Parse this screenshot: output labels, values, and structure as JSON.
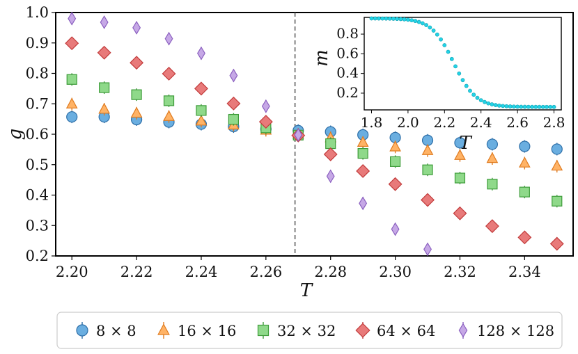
{
  "chart_data": [
    {
      "type": "scatter",
      "title": "",
      "xlabel": "T",
      "ylabel": "g",
      "xlim": [
        2.195,
        2.355
      ],
      "ylim": [
        0.2,
        1.0
      ],
      "xticks": [
        "2.20",
        "2.22",
        "2.24",
        "2.26",
        "2.28",
        "2.30",
        "2.32",
        "2.34"
      ],
      "yticks": [
        "0.2",
        "0.3",
        "0.4",
        "0.5",
        "0.6",
        "0.7",
        "0.8",
        "0.9",
        "1.0"
      ],
      "critical_line_x": 2.269,
      "legend_position": "bottom",
      "x": [
        2.2,
        2.21,
        2.22,
        2.23,
        2.24,
        2.25,
        2.26,
        2.27,
        2.28,
        2.29,
        2.3,
        2.31,
        2.32,
        2.33,
        2.34,
        2.35
      ],
      "series": [
        {
          "name": "8 × 8",
          "marker": "circle",
          "color": "#6aaee0",
          "edge": "#2e6fa8",
          "values": [
            0.657,
            0.657,
            0.648,
            0.64,
            0.633,
            0.625,
            0.617,
            0.612,
            0.608,
            0.598,
            0.589,
            0.58,
            0.572,
            0.567,
            0.56,
            0.551
          ]
        },
        {
          "name": "16 × 16",
          "marker": "triangle",
          "color": "#ffb366",
          "edge": "#e07b1f",
          "values": [
            0.699,
            0.682,
            0.669,
            0.658,
            0.643,
            0.63,
            0.613,
            0.6,
            0.588,
            0.573,
            0.558,
            0.546,
            0.53,
            0.52,
            0.505,
            0.495
          ]
        },
        {
          "name": "32 × 32",
          "marker": "square",
          "color": "#8fd98a",
          "edge": "#3e9c3a",
          "values": [
            0.78,
            0.753,
            0.73,
            0.71,
            0.678,
            0.649,
            0.621,
            0.597,
            0.569,
            0.537,
            0.51,
            0.483,
            0.456,
            0.436,
            0.41,
            0.38
          ]
        },
        {
          "name": "64 × 64",
          "marker": "diamond",
          "color": "#e87a7a",
          "edge": "#c23b3b",
          "values": [
            0.899,
            0.868,
            0.835,
            0.799,
            0.75,
            0.701,
            0.641,
            0.596,
            0.534,
            0.479,
            0.436,
            0.384,
            0.34,
            0.298,
            0.261,
            0.24
          ]
        },
        {
          "name": "128 × 128",
          "marker": "thin-diamond",
          "color": "#c6a8e6",
          "edge": "#8a5fbf",
          "values": [
            0.98,
            0.968,
            0.95,
            0.914,
            0.866,
            0.793,
            0.692,
            0.598,
            0.462,
            0.373,
            0.288,
            0.222,
            null,
            null,
            null,
            null
          ]
        }
      ]
    },
    {
      "type": "scatter",
      "title": "",
      "xlabel": "T",
      "ylabel": "m",
      "xlim": [
        1.76,
        2.84
      ],
      "ylim": [
        0.03,
        0.97
      ],
      "xticks": [
        "1.8",
        "2.0",
        "2.2",
        "2.4",
        "2.6",
        "2.8"
      ],
      "yticks": [
        "0.2",
        "0.4",
        "0.6",
        "0.8"
      ],
      "series": [
        {
          "name": "m",
          "marker": "circle",
          "color": "#22d3e6",
          "edge": "#119fb0",
          "curve": {
            "form": "logistic",
            "low": 0.06,
            "high": 0.96,
            "center": 2.25,
            "width": 0.06
          },
          "x_start": 1.8,
          "x_step": 0.02,
          "count": 51
        }
      ]
    }
  ]
}
